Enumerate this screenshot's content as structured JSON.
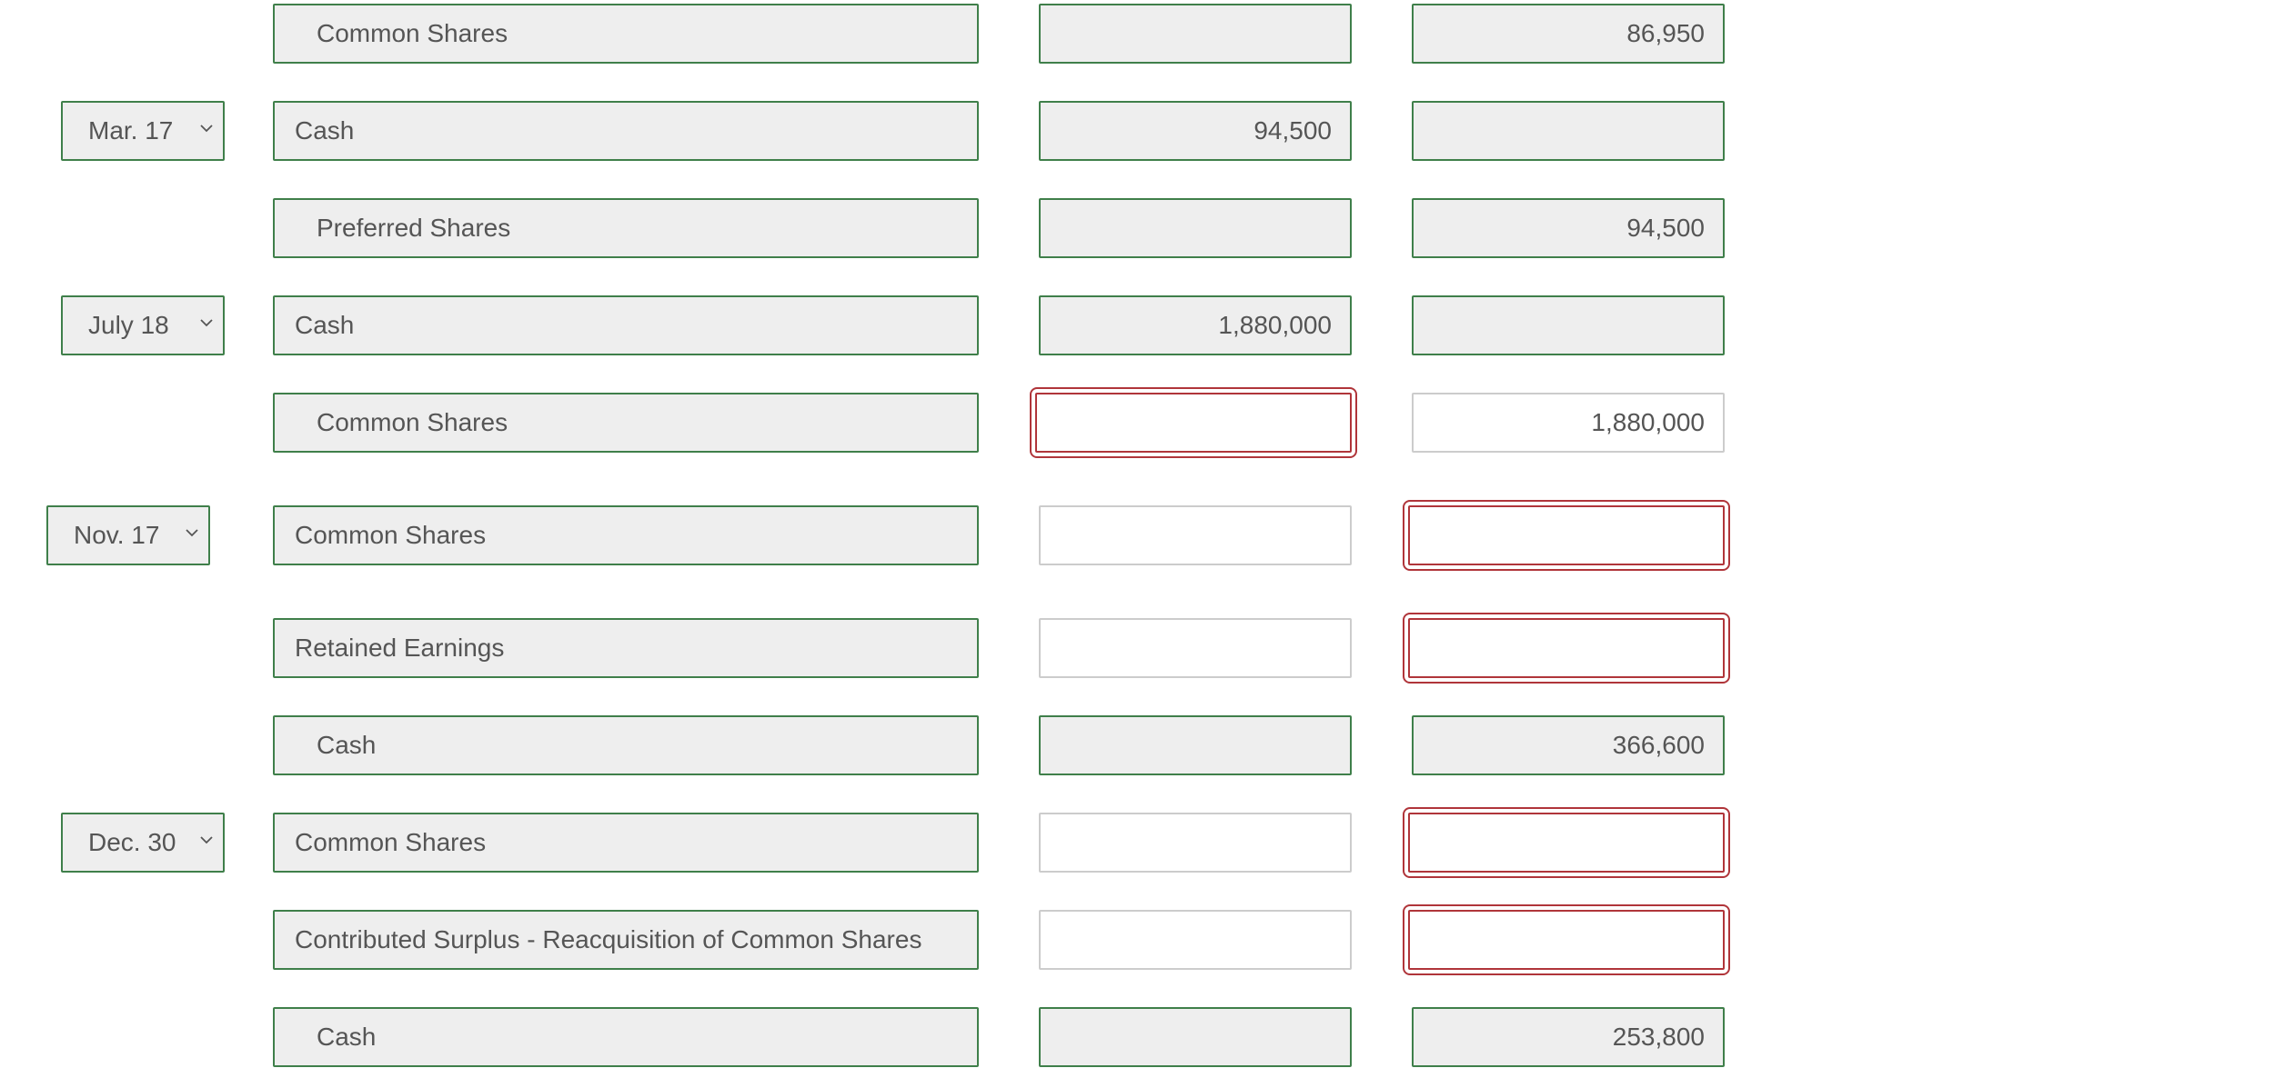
{
  "colors": {
    "valid_border": "#3f7f4a",
    "error_border": "#b0353a",
    "neutral_border": "#cccccc",
    "filled_background": "#eeeeee"
  },
  "icons": {
    "dropdown": "chevron-down-icon"
  },
  "rows": [
    {
      "date": "",
      "account": "Common Shares",
      "indent": true,
      "debit": "",
      "credit": "86,950"
    },
    {
      "date": "Mar. 17",
      "account": "Cash",
      "indent": false,
      "debit": "94,500",
      "credit": ""
    },
    {
      "date": "",
      "account": "Preferred Shares",
      "indent": true,
      "debit": "",
      "credit": "94,500"
    },
    {
      "date": "July 18",
      "account": "Cash",
      "indent": false,
      "debit": "1,880,000",
      "credit": ""
    },
    {
      "date": "",
      "account": "Common Shares",
      "indent": true,
      "debit": "",
      "credit": "1,880,000"
    },
    {
      "date": "Nov. 17",
      "account": "Common Shares",
      "indent": false,
      "debit": "",
      "credit": ""
    },
    {
      "date": "",
      "account": "Retained Earnings",
      "indent": false,
      "debit": "",
      "credit": ""
    },
    {
      "date": "",
      "account": "Cash",
      "indent": true,
      "debit": "",
      "credit": "366,600"
    },
    {
      "date": "Dec. 30",
      "account": "Common Shares",
      "indent": false,
      "debit": "",
      "credit": ""
    },
    {
      "date": "",
      "account": "Contributed Surplus - Reacquisition of Common Shares",
      "indent": false,
      "debit": "",
      "credit": ""
    },
    {
      "date": "",
      "account": "Cash",
      "indent": true,
      "debit": "",
      "credit": "253,800"
    }
  ]
}
